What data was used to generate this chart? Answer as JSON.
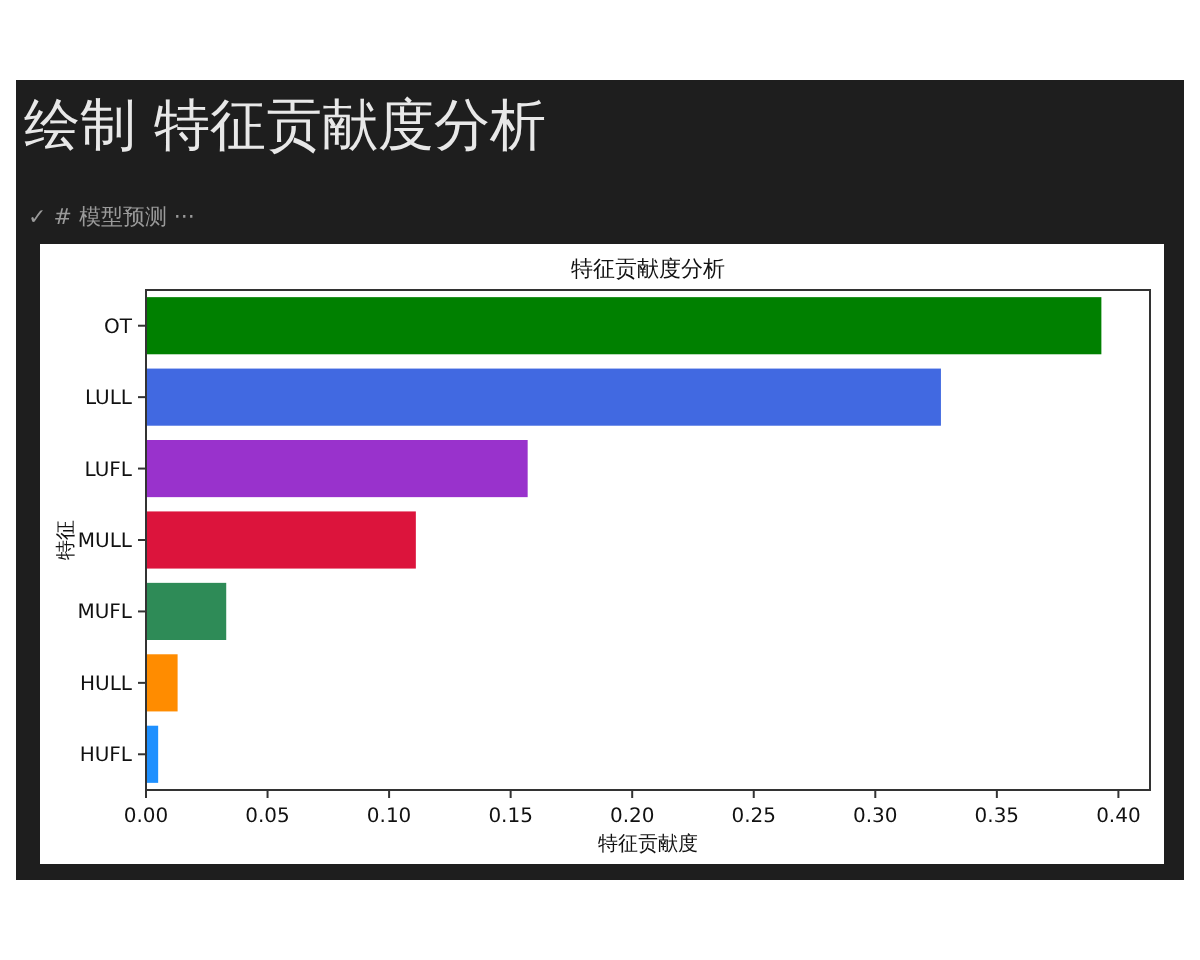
{
  "chart_data": {
    "type": "bar",
    "orientation": "horizontal",
    "title": "特征贡献度分析",
    "xlabel": "特征贡献度",
    "ylabel": "特征",
    "annotations": [
      "绘制 特征贡献度分析",
      "✓ # 模型预测 ···"
    ],
    "categories": [
      "OT",
      "LULL",
      "LUFL",
      "MULL",
      "MUFL",
      "HULL",
      "HUFL"
    ],
    "values": [
      0.393,
      0.327,
      0.157,
      0.111,
      0.033,
      0.013,
      0.005
    ],
    "colors": [
      "#008000",
      "#4169e1",
      "#9932cc",
      "#dc143c",
      "#2e8b57",
      "#ff8c00",
      "#1e90ff"
    ],
    "xlim": [
      0,
      0.413
    ],
    "xticks": [
      {
        "value": 0,
        "label": "0.00"
      },
      {
        "value": 0.05,
        "label": "0.05"
      },
      {
        "value": 0.1,
        "label": "0.10"
      },
      {
        "value": 0.15,
        "label": "0.15"
      },
      {
        "value": 0.2,
        "label": "0.20"
      },
      {
        "value": 0.25,
        "label": "0.25"
      },
      {
        "value": 0.3,
        "label": "0.30"
      },
      {
        "value": 0.35,
        "label": "0.35"
      },
      {
        "value": 0.4,
        "label": "0.40"
      }
    ]
  }
}
